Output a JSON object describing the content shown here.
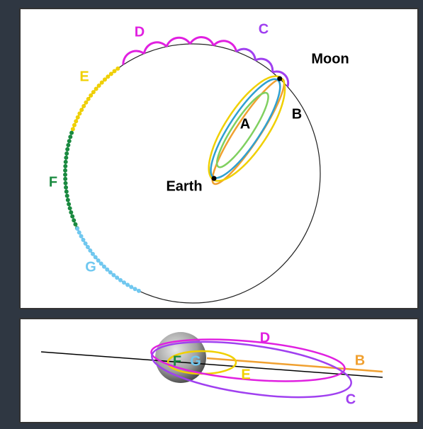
{
  "top_panel": {
    "labels": [
      "D",
      "C",
      "Moon",
      "E",
      "A",
      "B",
      "F",
      "Earth",
      "G"
    ]
  },
  "bottom_panel": {
    "labels": [
      "D",
      "B",
      "F",
      "G",
      "E",
      "C"
    ]
  }
}
